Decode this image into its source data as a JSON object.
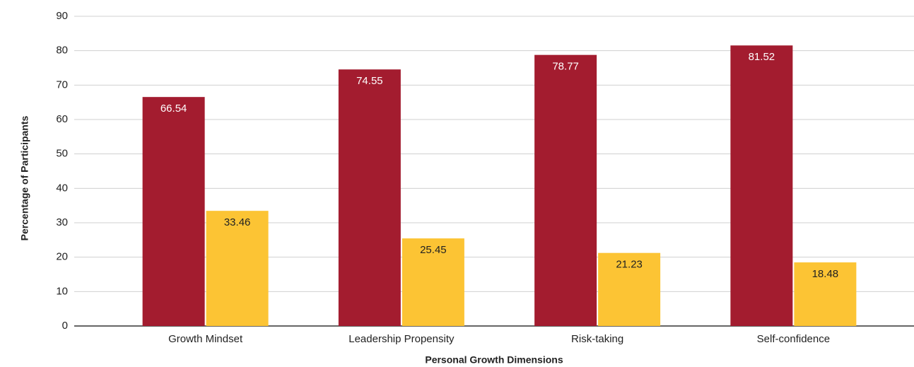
{
  "chart_data": {
    "type": "bar",
    "x_label": "Personal Growth Dimensions",
    "y_label": "Percentage of Participants",
    "categories": [
      "Growth Mindset",
      "Leadership Propensity",
      "Risk-taking",
      "Self-confidence"
    ],
    "series": [
      {
        "color": "#a31c2f",
        "values": [
          66.54,
          74.55,
          78.77,
          81.52
        ]
      },
      {
        "color": "#fcc434",
        "values": [
          33.46,
          25.45,
          21.23,
          18.48
        ]
      }
    ],
    "ylim": [
      0,
      90
    ],
    "yticks": [
      0,
      10,
      20,
      30,
      40,
      50,
      60,
      70,
      80,
      90
    ],
    "grid": true
  }
}
